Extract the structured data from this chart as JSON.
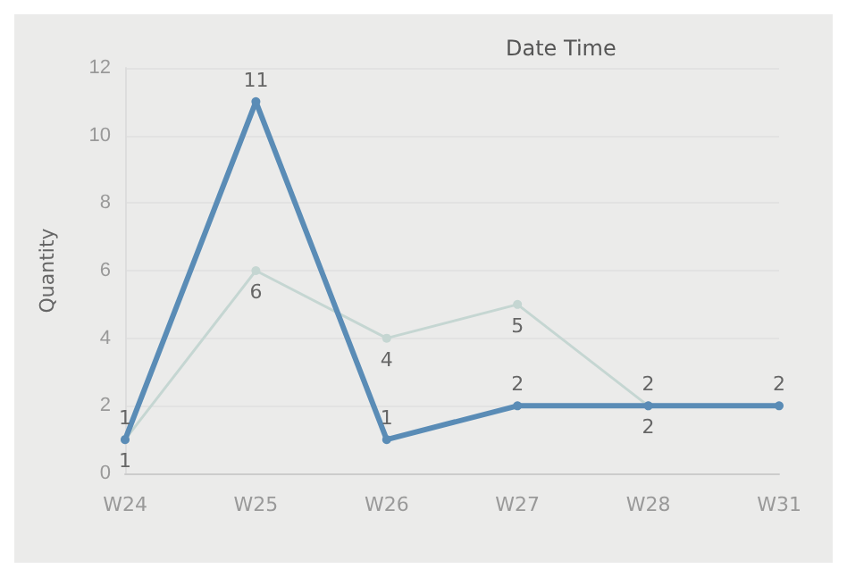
{
  "chart_data": {
    "type": "line",
    "xlabel": "Date Time",
    "ylabel": "Quantity",
    "categories": [
      "W24",
      "W25",
      "W26",
      "W27",
      "W28",
      "W31"
    ],
    "series": [
      {
        "color": "#c5d6d2",
        "values": [
          1,
          6,
          4,
          5,
          2,
          null
        ]
      },
      {
        "color": "#5a8cb6",
        "values": [
          1,
          11,
          1,
          2,
          2,
          2
        ]
      }
    ],
    "ylim": [
      0,
      12
    ],
    "yticks": [
      0,
      2,
      4,
      6,
      8,
      10,
      12
    ],
    "grid": "y",
    "data_labels": true,
    "marker": "circle",
    "line_style": "solid"
  }
}
